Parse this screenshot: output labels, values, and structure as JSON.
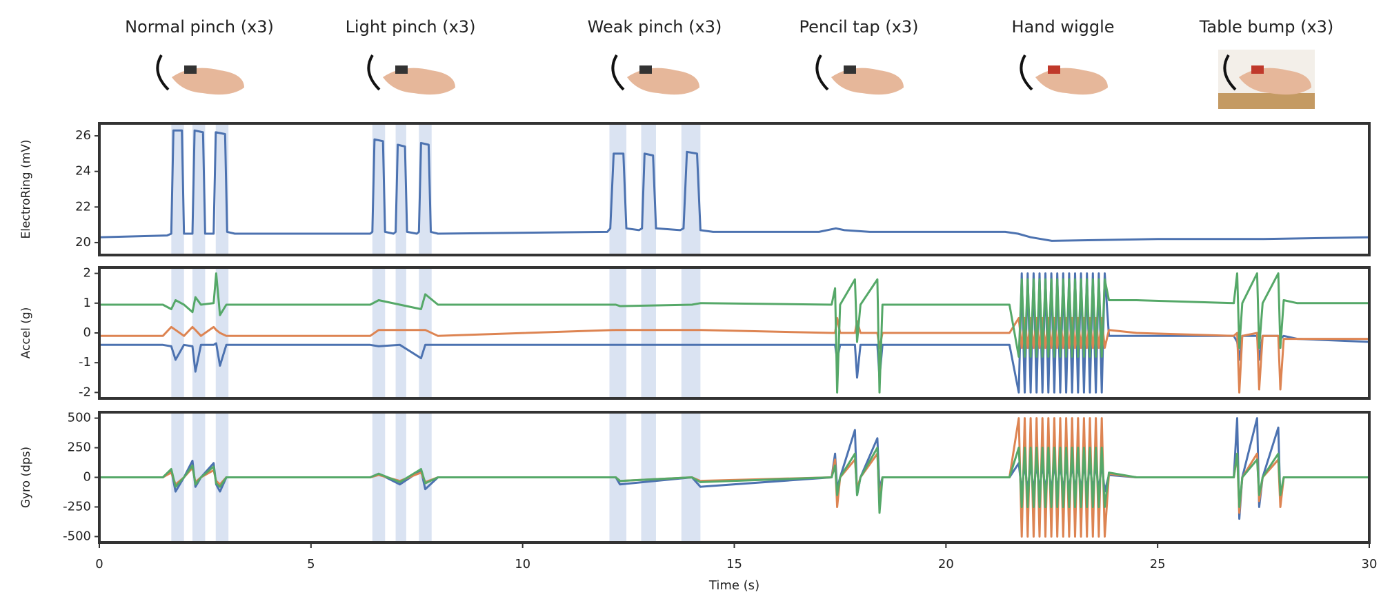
{
  "chart_data": [
    {
      "type": "line",
      "ylabel": "ElectroRing (mV)",
      "annotations": [
        "Normal pinch (x3)",
        "Light pinch (x3)",
        "Weak pinch (x3)",
        "Pencil tap (x3)",
        "Hand wiggle",
        "Table bump (x3)"
      ],
      "xlim": [
        0,
        30
      ],
      "ylim": [
        19.3,
        26.7
      ],
      "yticks": [
        20,
        22,
        24,
        26
      ],
      "spans": [
        [
          1.7,
          2.0
        ],
        [
          2.2,
          2.5
        ],
        [
          2.75,
          3.05
        ],
        [
          6.45,
          6.75
        ],
        [
          7.0,
          7.25
        ],
        [
          7.55,
          7.85
        ],
        [
          12.05,
          12.45
        ],
        [
          12.8,
          13.15
        ],
        [
          13.75,
          14.2
        ]
      ],
      "x": [
        0,
        1.6,
        1.7,
        1.75,
        1.95,
        2.0,
        2.15,
        2.2,
        2.25,
        2.45,
        2.5,
        2.65,
        2.7,
        2.75,
        2.97,
        3.02,
        3.2,
        6.4,
        6.45,
        6.5,
        6.7,
        6.75,
        6.95,
        7.0,
        7.05,
        7.22,
        7.27,
        7.5,
        7.55,
        7.6,
        7.78,
        7.83,
        8.0,
        12.0,
        12.07,
        12.15,
        12.38,
        12.45,
        12.75,
        12.82,
        12.88,
        13.08,
        13.15,
        13.72,
        13.8,
        13.88,
        14.12,
        14.2,
        14.5,
        17.0,
        17.4,
        17.6,
        18.2,
        21.4,
        21.7,
        22.0,
        22.5,
        25.0,
        27.5,
        30
      ],
      "series": [
        {
          "color": "#4c72b0",
          "values": [
            20.3,
            20.4,
            20.5,
            26.3,
            26.3,
            20.5,
            20.5,
            20.5,
            26.3,
            26.2,
            20.5,
            20.5,
            20.5,
            26.2,
            26.1,
            20.6,
            20.5,
            20.5,
            20.6,
            25.8,
            25.7,
            20.6,
            20.5,
            20.6,
            25.5,
            25.4,
            20.6,
            20.5,
            20.6,
            25.6,
            25.5,
            20.6,
            20.5,
            20.6,
            20.8,
            25.0,
            25.0,
            20.8,
            20.7,
            20.8,
            25.0,
            24.9,
            20.8,
            20.7,
            20.8,
            25.1,
            25.0,
            20.7,
            20.6,
            20.6,
            20.8,
            20.7,
            20.6,
            20.6,
            20.5,
            20.3,
            20.1,
            20.2,
            20.2,
            20.3
          ]
        }
      ]
    },
    {
      "type": "line",
      "ylabel": "Accel (g)",
      "xlim": [
        0,
        30
      ],
      "ylim": [
        -2.2,
        2.2
      ],
      "yticks": [
        -2,
        -1,
        0,
        1,
        2
      ],
      "spans": [
        [
          1.7,
          2.0
        ],
        [
          2.2,
          2.5
        ],
        [
          2.75,
          3.05
        ],
        [
          6.45,
          6.75
        ],
        [
          7.0,
          7.25
        ],
        [
          7.55,
          7.85
        ],
        [
          12.05,
          12.45
        ],
        [
          12.8,
          13.15
        ],
        [
          13.75,
          14.2
        ]
      ],
      "x": [
        0,
        1.5,
        1.7,
        1.8,
        2.0,
        2.2,
        2.27,
        2.4,
        2.7,
        2.76,
        2.85,
        3.0,
        3.3,
        6.4,
        6.6,
        7.1,
        7.6,
        7.7,
        8.0,
        12.2,
        12.3,
        14.0,
        14.2,
        17.3,
        17.38,
        17.43,
        17.5,
        17.85,
        17.9,
        17.98,
        18.38,
        18.43,
        18.5,
        21.5,
        21.72,
        21.79,
        21.86,
        21.93,
        22.0,
        22.07,
        22.14,
        22.21,
        22.28,
        22.35,
        22.42,
        22.49,
        22.56,
        22.63,
        22.7,
        22.77,
        22.84,
        22.91,
        22.98,
        23.05,
        23.12,
        23.19,
        23.26,
        23.33,
        23.4,
        23.47,
        23.54,
        23.61,
        23.68,
        23.75,
        23.85,
        24.5,
        26.8,
        26.88,
        26.93,
        27.0,
        27.35,
        27.4,
        27.48,
        27.85,
        27.9,
        27.98,
        28.3,
        30
      ],
      "series": [
        {
          "color": "#4c72b0",
          "values": [
            -0.4,
            -0.4,
            -0.45,
            -0.9,
            -0.4,
            -0.45,
            -1.3,
            -0.4,
            -0.4,
            -0.35,
            -1.1,
            -0.4,
            -0.4,
            -0.4,
            -0.45,
            -0.4,
            -0.85,
            -0.4,
            -0.4,
            -0.4,
            -0.4,
            -0.4,
            -0.4,
            -0.4,
            -0.4,
            -0.9,
            -0.4,
            -0.4,
            -1.5,
            -0.4,
            -0.4,
            -1.5,
            -0.4,
            -0.4,
            -2,
            2,
            -2,
            2,
            -2,
            2,
            -2,
            2,
            -2,
            2,
            -2,
            2,
            -2,
            2,
            -2,
            2,
            -2,
            2,
            -2,
            2,
            -2,
            2,
            -2,
            2,
            -2,
            2,
            -2,
            2,
            -2,
            2,
            -0.1,
            -0.1,
            -0.1,
            -0.3,
            -0.9,
            -0.1,
            -0.1,
            -0.9,
            -0.1,
            -0.1,
            -0.2,
            -0.1,
            -0.2,
            -0.3
          ]
        },
        {
          "color": "#dd8452",
          "values": [
            -0.1,
            -0.1,
            0.2,
            0.1,
            -0.1,
            0.2,
            0.1,
            -0.1,
            0.2,
            0.1,
            0,
            -0.1,
            -0.1,
            -0.1,
            0.1,
            0.1,
            0.1,
            0.1,
            -0.1,
            0.1,
            0.1,
            0.1,
            0.1,
            0,
            0,
            0.5,
            0,
            0,
            0.4,
            0,
            0,
            -0.5,
            0,
            0,
            0.5,
            -0.5,
            0.5,
            -0.5,
            0.5,
            -0.5,
            0.5,
            -0.5,
            0.5,
            -0.5,
            0.5,
            -0.5,
            0.5,
            -0.5,
            0.5,
            -0.5,
            0.5,
            -0.5,
            0.5,
            -0.5,
            0.5,
            -0.5,
            0.5,
            -0.5,
            0.5,
            -0.5,
            0.5,
            -0.5,
            0.5,
            -0.5,
            0.1,
            0,
            -0.1,
            0,
            -2,
            -0.1,
            0,
            -1.9,
            -0.1,
            -0.1,
            -1.9,
            -0.2,
            -0.2,
            -0.2
          ]
        },
        {
          "color": "#55a868",
          "values": [
            0.95,
            0.95,
            0.8,
            1.1,
            0.95,
            0.7,
            1.2,
            0.95,
            1.0,
            2.0,
            0.6,
            0.95,
            0.95,
            0.95,
            1.1,
            0.95,
            0.8,
            1.3,
            0.95,
            0.95,
            0.9,
            0.95,
            1.0,
            0.95,
            1.5,
            -2,
            0.95,
            1.8,
            -0.3,
            0.95,
            1.8,
            -2,
            0.95,
            0.95,
            -0.8,
            1.8,
            -0.8,
            1.8,
            -0.8,
            1.8,
            -0.8,
            1.8,
            -0.8,
            1.8,
            -0.8,
            1.8,
            -0.8,
            1.8,
            -0.8,
            1.8,
            -0.8,
            1.8,
            -0.8,
            1.8,
            -0.8,
            1.8,
            -0.8,
            1.8,
            -0.8,
            1.8,
            -0.8,
            1.8,
            -0.8,
            1.8,
            1.1,
            1.1,
            1.0,
            2.0,
            -0.5,
            1.0,
            2.0,
            -0.5,
            1.0,
            2.0,
            -0.5,
            1.1,
            1.0,
            1.0
          ]
        }
      ]
    },
    {
      "type": "line",
      "ylabel": "Gyro (dps)",
      "xlabel": "Time (s)",
      "xlim": [
        0,
        30
      ],
      "xticks": [
        0,
        5,
        10,
        15,
        20,
        25,
        30
      ],
      "ylim": [
        -550,
        550
      ],
      "yticks": [
        -500,
        -250,
        0,
        250,
        500
      ],
      "spans": [
        [
          1.7,
          2.0
        ],
        [
          2.2,
          2.5
        ],
        [
          2.75,
          3.05
        ],
        [
          6.45,
          6.75
        ],
        [
          7.0,
          7.25
        ],
        [
          7.55,
          7.85
        ],
        [
          12.05,
          12.45
        ],
        [
          12.8,
          13.15
        ],
        [
          13.75,
          14.2
        ]
      ],
      "x": [
        0,
        1.5,
        1.7,
        1.8,
        2.0,
        2.2,
        2.27,
        2.4,
        2.7,
        2.76,
        2.85,
        3.0,
        3.3,
        6.4,
        6.6,
        7.1,
        7.6,
        7.7,
        8.0,
        12.2,
        12.3,
        14.0,
        14.2,
        17.3,
        17.38,
        17.43,
        17.5,
        17.85,
        17.9,
        17.98,
        18.38,
        18.43,
        18.5,
        21.5,
        21.72,
        21.79,
        21.86,
        21.93,
        22.0,
        22.07,
        22.14,
        22.21,
        22.28,
        22.35,
        22.42,
        22.49,
        22.56,
        22.63,
        22.7,
        22.77,
        22.84,
        22.91,
        22.98,
        23.05,
        23.12,
        23.19,
        23.26,
        23.33,
        23.4,
        23.47,
        23.54,
        23.61,
        23.68,
        23.75,
        23.85,
        24.5,
        26.8,
        26.88,
        26.93,
        27.0,
        27.35,
        27.4,
        27.48,
        27.85,
        27.9,
        27.98,
        28.3,
        30
      ],
      "series": [
        {
          "color": "#4c72b0",
          "values": [
            0,
            0,
            60,
            -120,
            0,
            140,
            -80,
            0,
            120,
            -60,
            -120,
            0,
            0,
            0,
            30,
            -60,
            60,
            -100,
            0,
            0,
            -60,
            0,
            -80,
            0,
            200,
            -100,
            0,
            400,
            -150,
            0,
            330,
            -100,
            0,
            0,
            120,
            -120,
            120,
            -120,
            120,
            -120,
            120,
            -120,
            120,
            -120,
            120,
            -120,
            120,
            -120,
            120,
            -120,
            120,
            -120,
            120,
            -120,
            120,
            -120,
            120,
            -120,
            120,
            -120,
            120,
            -120,
            120,
            -120,
            20,
            0,
            0,
            500,
            -350,
            0,
            500,
            -250,
            0,
            420,
            -200,
            0,
            0,
            0
          ]
        },
        {
          "color": "#dd8452",
          "values": [
            0,
            0,
            40,
            -60,
            0,
            80,
            -40,
            0,
            60,
            -30,
            -60,
            0,
            0,
            0,
            20,
            -30,
            40,
            -40,
            0,
            0,
            -30,
            0,
            -30,
            0,
            150,
            -250,
            0,
            150,
            -100,
            0,
            200,
            -200,
            0,
            0,
            500,
            -500,
            500,
            -500,
            500,
            -500,
            500,
            -500,
            500,
            -500,
            500,
            -500,
            500,
            -500,
            500,
            -500,
            500,
            -500,
            500,
            -500,
            500,
            -500,
            500,
            -500,
            500,
            -500,
            500,
            -500,
            500,
            -500,
            30,
            0,
            0,
            200,
            -300,
            0,
            200,
            -200,
            0,
            150,
            -250,
            0,
            0,
            0
          ]
        },
        {
          "color": "#55a868",
          "values": [
            0,
            0,
            70,
            -80,
            0,
            100,
            -60,
            0,
            90,
            -50,
            -80,
            0,
            0,
            0,
            30,
            -40,
            70,
            -50,
            0,
            0,
            -30,
            0,
            -40,
            0,
            100,
            -150,
            0,
            200,
            -150,
            0,
            250,
            -300,
            0,
            0,
            250,
            -250,
            250,
            -250,
            250,
            -250,
            250,
            -250,
            250,
            -250,
            250,
            -250,
            250,
            -250,
            250,
            -250,
            250,
            -250,
            250,
            -250,
            250,
            -250,
            250,
            -250,
            250,
            -250,
            250,
            -250,
            250,
            -250,
            40,
            0,
            0,
            200,
            -250,
            0,
            150,
            -150,
            0,
            200,
            -150,
            0,
            0,
            0
          ]
        }
      ]
    }
  ]
}
